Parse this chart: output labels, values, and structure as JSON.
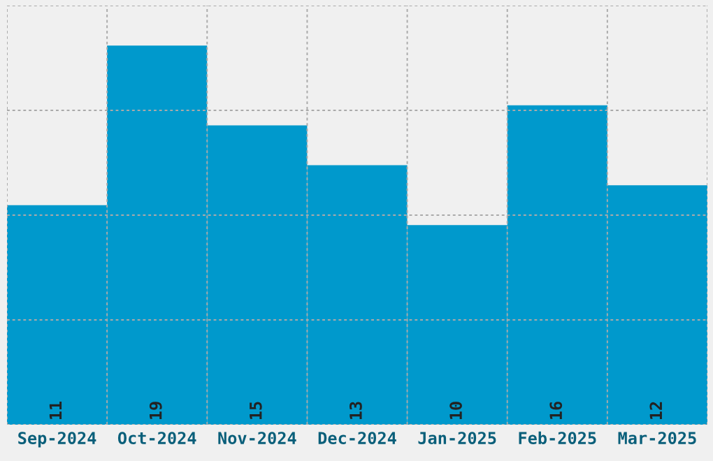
{
  "chart_data": {
    "type": "bar",
    "categories": [
      "Sep-2024",
      "Oct-2024",
      "Nov-2024",
      "Dec-2024",
      "Jan-2025",
      "Feb-2025",
      "Mar-2025"
    ],
    "values": [
      11,
      19,
      15,
      13,
      10,
      16,
      12
    ],
    "color": "#0099cc",
    "ylim": [
      0,
      21
    ],
    "yticks": [
      {
        "value": 0,
        "label": null
      },
      {
        "value": 5.25,
        "label": null
      },
      {
        "value": 10.5,
        "label": null
      },
      {
        "value": 15.75,
        "label": null
      },
      {
        "value": 21,
        "label": null
      }
    ],
    "tick_labels": "x",
    "grid": true,
    "data_labels": true
  }
}
